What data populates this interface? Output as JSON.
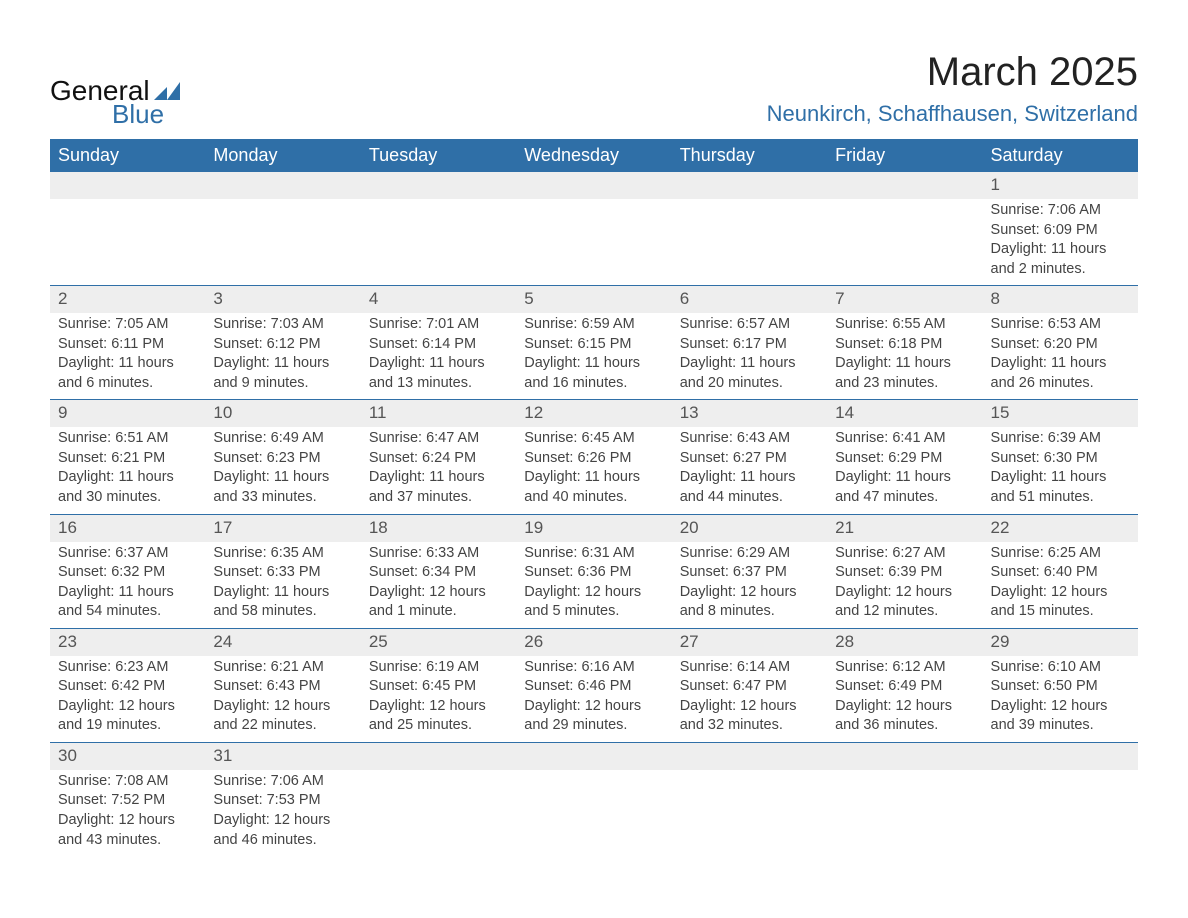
{
  "logo": {
    "word1": "General",
    "word2": "Blue",
    "text_color": "#111111",
    "accent_color": "#2f6fa7"
  },
  "title": "March 2025",
  "location": "Neunkirch, Schaffhausen, Switzerland",
  "colors": {
    "header_bg": "#2f6fa7",
    "header_text": "#ffffff",
    "daynum_bg": "#eeeeee",
    "row_divider": "#2f6fa7",
    "body_text": "#444444"
  },
  "day_headers": [
    "Sunday",
    "Monday",
    "Tuesday",
    "Wednesday",
    "Thursday",
    "Friday",
    "Saturday"
  ],
  "weeks": [
    [
      null,
      null,
      null,
      null,
      null,
      null,
      {
        "n": "1",
        "sr": "Sunrise: 7:06 AM",
        "ss": "Sunset: 6:09 PM",
        "dl": "Daylight: 11 hours and 2 minutes."
      }
    ],
    [
      {
        "n": "2",
        "sr": "Sunrise: 7:05 AM",
        "ss": "Sunset: 6:11 PM",
        "dl": "Daylight: 11 hours and 6 minutes."
      },
      {
        "n": "3",
        "sr": "Sunrise: 7:03 AM",
        "ss": "Sunset: 6:12 PM",
        "dl": "Daylight: 11 hours and 9 minutes."
      },
      {
        "n": "4",
        "sr": "Sunrise: 7:01 AM",
        "ss": "Sunset: 6:14 PM",
        "dl": "Daylight: 11 hours and 13 minutes."
      },
      {
        "n": "5",
        "sr": "Sunrise: 6:59 AM",
        "ss": "Sunset: 6:15 PM",
        "dl": "Daylight: 11 hours and 16 minutes."
      },
      {
        "n": "6",
        "sr": "Sunrise: 6:57 AM",
        "ss": "Sunset: 6:17 PM",
        "dl": "Daylight: 11 hours and 20 minutes."
      },
      {
        "n": "7",
        "sr": "Sunrise: 6:55 AM",
        "ss": "Sunset: 6:18 PM",
        "dl": "Daylight: 11 hours and 23 minutes."
      },
      {
        "n": "8",
        "sr": "Sunrise: 6:53 AM",
        "ss": "Sunset: 6:20 PM",
        "dl": "Daylight: 11 hours and 26 minutes."
      }
    ],
    [
      {
        "n": "9",
        "sr": "Sunrise: 6:51 AM",
        "ss": "Sunset: 6:21 PM",
        "dl": "Daylight: 11 hours and 30 minutes."
      },
      {
        "n": "10",
        "sr": "Sunrise: 6:49 AM",
        "ss": "Sunset: 6:23 PM",
        "dl": "Daylight: 11 hours and 33 minutes."
      },
      {
        "n": "11",
        "sr": "Sunrise: 6:47 AM",
        "ss": "Sunset: 6:24 PM",
        "dl": "Daylight: 11 hours and 37 minutes."
      },
      {
        "n": "12",
        "sr": "Sunrise: 6:45 AM",
        "ss": "Sunset: 6:26 PM",
        "dl": "Daylight: 11 hours and 40 minutes."
      },
      {
        "n": "13",
        "sr": "Sunrise: 6:43 AM",
        "ss": "Sunset: 6:27 PM",
        "dl": "Daylight: 11 hours and 44 minutes."
      },
      {
        "n": "14",
        "sr": "Sunrise: 6:41 AM",
        "ss": "Sunset: 6:29 PM",
        "dl": "Daylight: 11 hours and 47 minutes."
      },
      {
        "n": "15",
        "sr": "Sunrise: 6:39 AM",
        "ss": "Sunset: 6:30 PM",
        "dl": "Daylight: 11 hours and 51 minutes."
      }
    ],
    [
      {
        "n": "16",
        "sr": "Sunrise: 6:37 AM",
        "ss": "Sunset: 6:32 PM",
        "dl": "Daylight: 11 hours and 54 minutes."
      },
      {
        "n": "17",
        "sr": "Sunrise: 6:35 AM",
        "ss": "Sunset: 6:33 PM",
        "dl": "Daylight: 11 hours and 58 minutes."
      },
      {
        "n": "18",
        "sr": "Sunrise: 6:33 AM",
        "ss": "Sunset: 6:34 PM",
        "dl": "Daylight: 12 hours and 1 minute."
      },
      {
        "n": "19",
        "sr": "Sunrise: 6:31 AM",
        "ss": "Sunset: 6:36 PM",
        "dl": "Daylight: 12 hours and 5 minutes."
      },
      {
        "n": "20",
        "sr": "Sunrise: 6:29 AM",
        "ss": "Sunset: 6:37 PM",
        "dl": "Daylight: 12 hours and 8 minutes."
      },
      {
        "n": "21",
        "sr": "Sunrise: 6:27 AM",
        "ss": "Sunset: 6:39 PM",
        "dl": "Daylight: 12 hours and 12 minutes."
      },
      {
        "n": "22",
        "sr": "Sunrise: 6:25 AM",
        "ss": "Sunset: 6:40 PM",
        "dl": "Daylight: 12 hours and 15 minutes."
      }
    ],
    [
      {
        "n": "23",
        "sr": "Sunrise: 6:23 AM",
        "ss": "Sunset: 6:42 PM",
        "dl": "Daylight: 12 hours and 19 minutes."
      },
      {
        "n": "24",
        "sr": "Sunrise: 6:21 AM",
        "ss": "Sunset: 6:43 PM",
        "dl": "Daylight: 12 hours and 22 minutes."
      },
      {
        "n": "25",
        "sr": "Sunrise: 6:19 AM",
        "ss": "Sunset: 6:45 PM",
        "dl": "Daylight: 12 hours and 25 minutes."
      },
      {
        "n": "26",
        "sr": "Sunrise: 6:16 AM",
        "ss": "Sunset: 6:46 PM",
        "dl": "Daylight: 12 hours and 29 minutes."
      },
      {
        "n": "27",
        "sr": "Sunrise: 6:14 AM",
        "ss": "Sunset: 6:47 PM",
        "dl": "Daylight: 12 hours and 32 minutes."
      },
      {
        "n": "28",
        "sr": "Sunrise: 6:12 AM",
        "ss": "Sunset: 6:49 PM",
        "dl": "Daylight: 12 hours and 36 minutes."
      },
      {
        "n": "29",
        "sr": "Sunrise: 6:10 AM",
        "ss": "Sunset: 6:50 PM",
        "dl": "Daylight: 12 hours and 39 minutes."
      }
    ],
    [
      {
        "n": "30",
        "sr": "Sunrise: 7:08 AM",
        "ss": "Sunset: 7:52 PM",
        "dl": "Daylight: 12 hours and 43 minutes."
      },
      {
        "n": "31",
        "sr": "Sunrise: 7:06 AM",
        "ss": "Sunset: 7:53 PM",
        "dl": "Daylight: 12 hours and 46 minutes."
      },
      null,
      null,
      null,
      null,
      null
    ]
  ]
}
